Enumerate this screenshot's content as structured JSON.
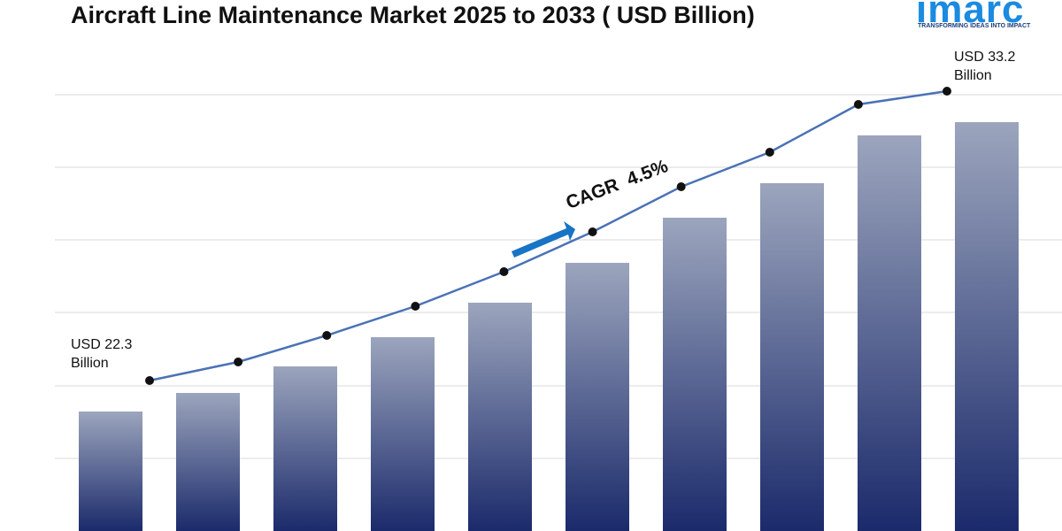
{
  "chart_data": {
    "type": "bar_line",
    "title": "Aircraft Line Maintenance Market 2025 to 2033 ( USD Billion)",
    "values": [
      22.3,
      23.0,
      24.0,
      25.1,
      26.4,
      27.9,
      29.6,
      30.9,
      32.7,
      33.2
    ],
    "ylim": [
      17.8,
      35.8
    ],
    "bar_color": "#1b2a6b",
    "line_color": "#4a72b5",
    "annotations": {
      "start": "USD 22.3 Billion",
      "end": "USD 33.2 Billion",
      "cagr": "CAGR  4.5%"
    },
    "logo": {
      "text": "imarc",
      "tagline": "TRANSFORMING IDEAS INTO IMPACT"
    }
  }
}
